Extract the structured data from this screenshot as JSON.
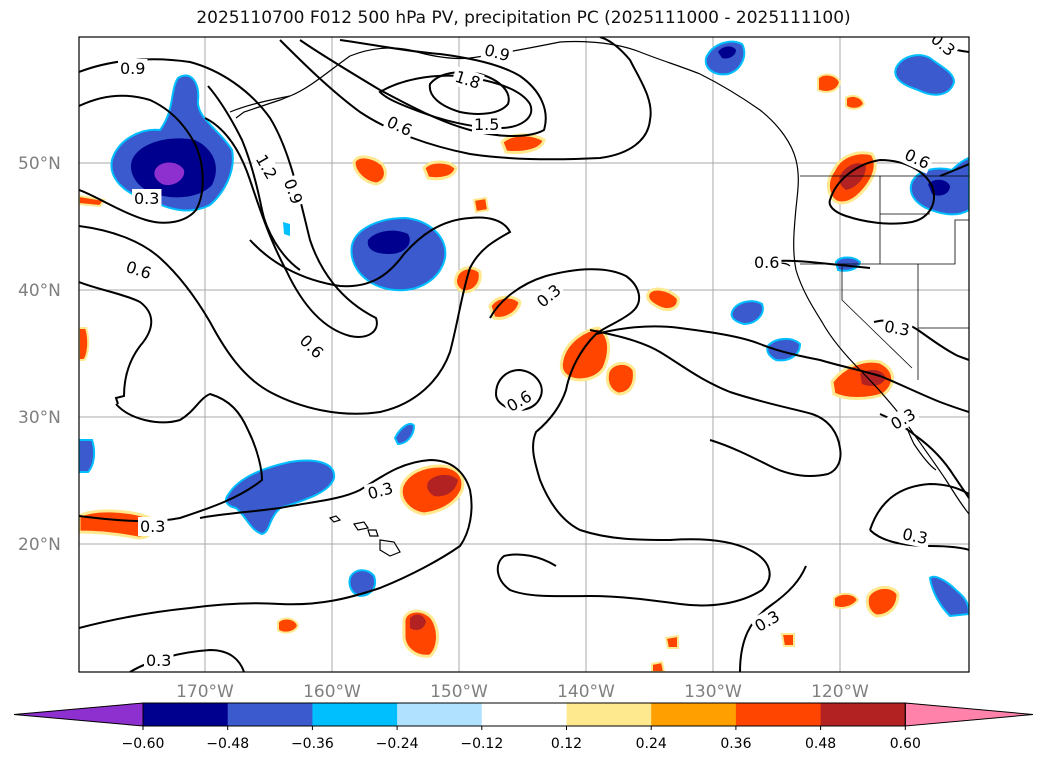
{
  "title": "2025110700 F012 500 hPa PV, precipitation PC (2025111000 - 2025111100)",
  "lat_labels": [
    "50°N",
    "40°N",
    "30°N",
    "20°N"
  ],
  "lon_labels": [
    "170°W",
    "160°W",
    "150°W",
    "140°W",
    "130°W",
    "120°W"
  ],
  "contour_labels": [
    "0.9",
    "1.8",
    "1.5",
    "0.6",
    "1.2",
    "0.9",
    "0.3",
    "0.6",
    "0.6",
    "0.3",
    "0.6",
    "0.3",
    "0.3",
    "0.6",
    "0.3",
    "0.3",
    "0.3",
    "0.9",
    "0.6",
    "0.3",
    "0.3",
    "0.3"
  ],
  "colorbar": {
    "ticks": [
      "−0.60",
      "−0.48",
      "−0.36",
      "−0.24",
      "−0.12",
      "0.12",
      "0.24",
      "0.36",
      "0.48",
      "0.60"
    ],
    "colors": [
      "#8e2fcf",
      "#00008f",
      "#3a5acd",
      "#00bfff",
      "#b0e2ff",
      "#ffffff",
      "#ffe98e",
      "#ff9f00",
      "#ff4500",
      "#b22222",
      "#ff82ab"
    ]
  },
  "colors": {
    "neg_strong": "#00008f",
    "neg_mid": "#3a5acd",
    "neg_light": "#00bfff",
    "neg_extreme": "#8e2fcf",
    "pos_light": "#ffe98e",
    "pos_mid": "#ff9f00",
    "pos_strong": "#ff4500",
    "pos_dark": "#b22222"
  }
}
